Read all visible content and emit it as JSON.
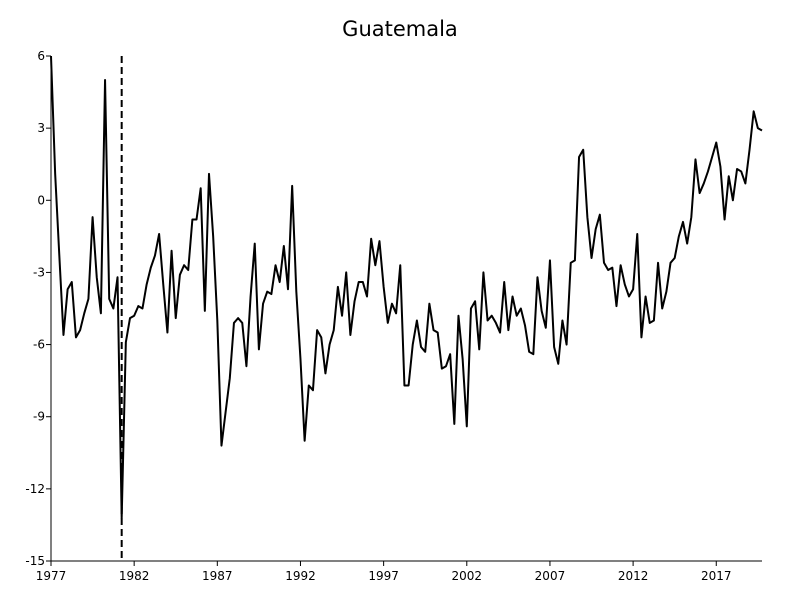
{
  "chart_data": {
    "type": "line",
    "title": "Guatemala",
    "xlabel": "",
    "ylabel": "",
    "xlim": [
      1977,
      2019.75
    ],
    "ylim": [
      -15,
      6
    ],
    "x_ticks": [
      {
        "value": 1977,
        "label": "1977"
      },
      {
        "value": 1982,
        "label": "1982"
      },
      {
        "value": 1987,
        "label": "1987"
      },
      {
        "value": 1992,
        "label": "1992"
      },
      {
        "value": 1997,
        "label": "1997"
      },
      {
        "value": 2002,
        "label": "2002"
      },
      {
        "value": 2007,
        "label": "2007"
      },
      {
        "value": 2012,
        "label": "2012"
      },
      {
        "value": 2017,
        "label": "2017"
      }
    ],
    "y_ticks": [
      {
        "value": 6,
        "label": "6"
      },
      {
        "value": 3,
        "label": "3"
      },
      {
        "value": 0,
        "label": "0"
      },
      {
        "value": -3,
        "label": "-3"
      },
      {
        "value": -6,
        "label": "-6"
      },
      {
        "value": -9,
        "label": "-9"
      },
      {
        "value": -12,
        "label": "-12"
      },
      {
        "value": -15,
        "label": "-15"
      }
    ],
    "grid": false,
    "legend": "none",
    "line_color": "#000000",
    "reference_line": {
      "x": 1981.25,
      "style": "dashed",
      "color": "#000000"
    },
    "series": [
      {
        "x": [
          1977.0,
          1977.25,
          1977.5,
          1977.75,
          1978.0,
          1978.25,
          1978.5,
          1978.75,
          1979.0,
          1979.25,
          1979.5,
          1979.75,
          1980.0,
          1980.25,
          1980.5,
          1980.75,
          1981.0,
          1981.25,
          1981.5,
          1981.75,
          1982.0,
          1982.25,
          1982.5,
          1982.75,
          1983.0,
          1983.25,
          1983.5,
          1983.75,
          1984.0,
          1984.25,
          1984.5,
          1984.75,
          1985.0,
          1985.25,
          1985.5,
          1985.75,
          1986.0,
          1986.25,
          1986.5,
          1986.75,
          1987.0,
          1987.25,
          1987.5,
          1987.75,
          1988.0,
          1988.25,
          1988.5,
          1988.75,
          1989.0,
          1989.25,
          1989.5,
          1989.75,
          1990.0,
          1990.25,
          1990.5,
          1990.75,
          1991.0,
          1991.25,
          1991.5,
          1991.75,
          1992.0,
          1992.25,
          1992.5,
          1992.75,
          1993.0,
          1993.25,
          1993.5,
          1993.75,
          1994.0,
          1994.25,
          1994.5,
          1994.75,
          1995.0,
          1995.25,
          1995.5,
          1995.75,
          1996.0,
          1996.25,
          1996.5,
          1996.75,
          1997.0,
          1997.25,
          1997.5,
          1997.75,
          1998.0,
          1998.25,
          1998.5,
          1998.75,
          1999.0,
          1999.25,
          1999.5,
          1999.75,
          2000.0,
          2000.25,
          2000.5,
          2000.75,
          2001.0,
          2001.25,
          2001.5,
          2001.75,
          2002.0,
          2002.25,
          2002.5,
          2002.75,
          2003.0,
          2003.25,
          2003.5,
          2003.75,
          2004.0,
          2004.25,
          2004.5,
          2004.75,
          2005.0,
          2005.25,
          2005.5,
          2005.75,
          2006.0,
          2006.25,
          2006.5,
          2006.75,
          2007.0,
          2007.25,
          2007.5,
          2007.75,
          2008.0,
          2008.25,
          2008.5,
          2008.75,
          2009.0,
          2009.25,
          2009.5,
          2009.75,
          2010.0,
          2010.25,
          2010.5,
          2010.75,
          2011.0,
          2011.25,
          2011.5,
          2011.75,
          2012.0,
          2012.25,
          2012.5,
          2012.75,
          2013.0,
          2013.25,
          2013.5,
          2013.75,
          2014.0,
          2014.25,
          2014.5,
          2014.75,
          2015.0,
          2015.25,
          2015.5,
          2015.75,
          2016.0,
          2016.25,
          2016.5,
          2016.75,
          2017.0,
          2017.25,
          2017.5,
          2017.75,
          2018.0,
          2018.25,
          2018.5,
          2018.75,
          2019.0,
          2019.25,
          2019.5,
          2019.75
        ],
        "values": [
          6.0,
          1.1,
          -2.3,
          -5.6,
          -3.7,
          -3.4,
          -5.7,
          -5.4,
          -4.7,
          -4.1,
          -0.7,
          -3.2,
          -4.7,
          5.0,
          -4.1,
          -4.5,
          -3.2,
          -13.2,
          -5.9,
          -4.9,
          -4.8,
          -4.4,
          -4.5,
          -3.5,
          -2.8,
          -2.3,
          -1.4,
          -3.5,
          -5.5,
          -2.1,
          -4.9,
          -3.1,
          -2.7,
          -2.9,
          -0.8,
          -0.8,
          0.5,
          -4.6,
          1.1,
          -1.5,
          -5.0,
          -10.2,
          -8.8,
          -7.4,
          -5.1,
          -4.9,
          -5.1,
          -6.9,
          -4.0,
          -1.8,
          -6.2,
          -4.3,
          -3.8,
          -3.9,
          -2.7,
          -3.4,
          -1.9,
          -3.7,
          0.6,
          -3.8,
          -6.6,
          -10.0,
          -7.7,
          -7.9,
          -5.4,
          -5.7,
          -7.2,
          -6.0,
          -5.4,
          -3.6,
          -4.8,
          -3.0,
          -5.6,
          -4.2,
          -3.4,
          -3.4,
          -4.0,
          -1.6,
          -2.7,
          -1.7,
          -3.6,
          -5.1,
          -4.3,
          -4.7,
          -2.7,
          -7.7,
          -7.7,
          -6.0,
          -5.0,
          -6.1,
          -6.3,
          -4.3,
          -5.4,
          -5.5,
          -7.0,
          -6.9,
          -6.4,
          -9.3,
          -4.8,
          -6.6,
          -9.4,
          -4.5,
          -4.2,
          -6.2,
          -3.0,
          -5.0,
          -4.8,
          -5.1,
          -5.5,
          -3.4,
          -5.4,
          -4.0,
          -4.8,
          -4.5,
          -5.2,
          -6.3,
          -6.4,
          -3.2,
          -4.6,
          -5.3,
          -2.5,
          -6.1,
          -6.8,
          -5.0,
          -6.0,
          -2.6,
          -2.5,
          1.8,
          2.1,
          -0.7,
          -2.4,
          -1.2,
          -0.6,
          -2.6,
          -2.9,
          -2.8,
          -4.4,
          -2.7,
          -3.5,
          -4.0,
          -3.7,
          -1.4,
          -5.7,
          -4.0,
          -5.1,
          -5.0,
          -2.6,
          -4.5,
          -3.8,
          -2.6,
          -2.4,
          -1.5,
          -0.9,
          -1.8,
          -0.7,
          1.7,
          0.3,
          0.7,
          1.2,
          1.8,
          2.4,
          1.4,
          -0.8,
          1.0,
          0.0,
          1.3,
          1.2,
          0.7,
          2.1,
          3.7,
          3.0,
          2.9
        ]
      }
    ]
  }
}
